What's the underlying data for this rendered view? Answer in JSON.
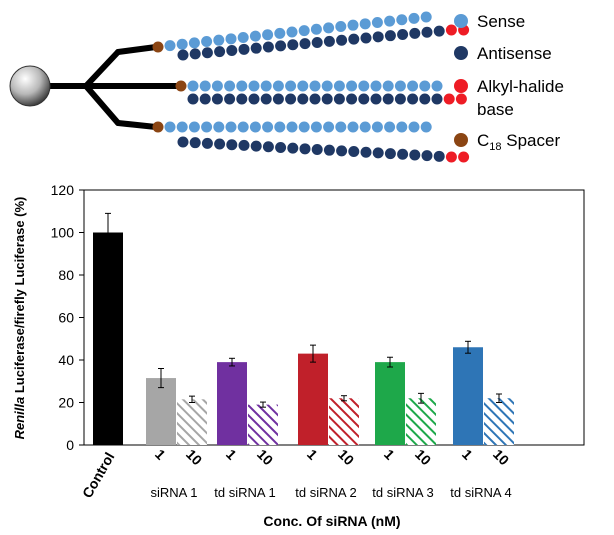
{
  "legend": {
    "items": [
      {
        "key": "sense",
        "label": "Sense",
        "color": "#5b9bd5"
      },
      {
        "key": "antisense",
        "label": "Antisense",
        "color": "#1f3864"
      },
      {
        "key": "alkyl",
        "label_line1": "Alkyl-halide",
        "label_line2": "base",
        "color": "#ee1c25"
      },
      {
        "key": "spacer",
        "label_prefix": "C",
        "label_sub": "18",
        "label_suffix": " Spacer",
        "color": "#8b4513"
      }
    ]
  },
  "chart_data": {
    "type": "bar",
    "ylabel_italic": "Renilla",
    "ylabel_rest": " Luciferase/firefly Luciferase (%)",
    "xlabel": "Conc. Of siRNA (nM)",
    "ylim": [
      0,
      120
    ],
    "yticks": [
      "0",
      "20",
      "40",
      "60",
      "80",
      "100",
      "120"
    ],
    "groups": [
      {
        "name": "Control",
        "bars": [
          {
            "conc": "",
            "value": 100,
            "err": 9,
            "color": "#000000",
            "hatched": false
          }
        ]
      },
      {
        "name": "siRNA 1",
        "bars": [
          {
            "conc": "1",
            "value": 31.5,
            "err": 4.5,
            "color": "#a6a6a6",
            "hatched": false
          },
          {
            "conc": "10",
            "value": 21.5,
            "err": 1.5,
            "color": "#a6a6a6",
            "hatched": true
          }
        ]
      },
      {
        "name": "td siRNA 1",
        "bars": [
          {
            "conc": "1",
            "value": 39,
            "err": 1.8,
            "color": "#7030a0",
            "hatched": false
          },
          {
            "conc": "10",
            "value": 19,
            "err": 1.2,
            "color": "#7030a0",
            "hatched": true
          }
        ]
      },
      {
        "name": "td siRNA 2",
        "bars": [
          {
            "conc": "1",
            "value": 43,
            "err": 4,
            "color": "#c0202a",
            "hatched": false
          },
          {
            "conc": "10",
            "value": 22,
            "err": 1.2,
            "color": "#c0202a",
            "hatched": true
          }
        ]
      },
      {
        "name": "td siRNA 3",
        "bars": [
          {
            "conc": "1",
            "value": 39,
            "err": 2.3,
            "color": "#1ea84a",
            "hatched": false
          },
          {
            "conc": "10",
            "value": 22,
            "err": 2.3,
            "color": "#1ea84a",
            "hatched": true
          }
        ]
      },
      {
        "name": "td siRNA 4",
        "bars": [
          {
            "conc": "1",
            "value": 46,
            "err": 2.8,
            "color": "#2e75b6",
            "hatched": false
          },
          {
            "conc": "10",
            "value": 22,
            "err": 2,
            "color": "#2e75b6",
            "hatched": true
          }
        ]
      }
    ],
    "grid": false
  }
}
